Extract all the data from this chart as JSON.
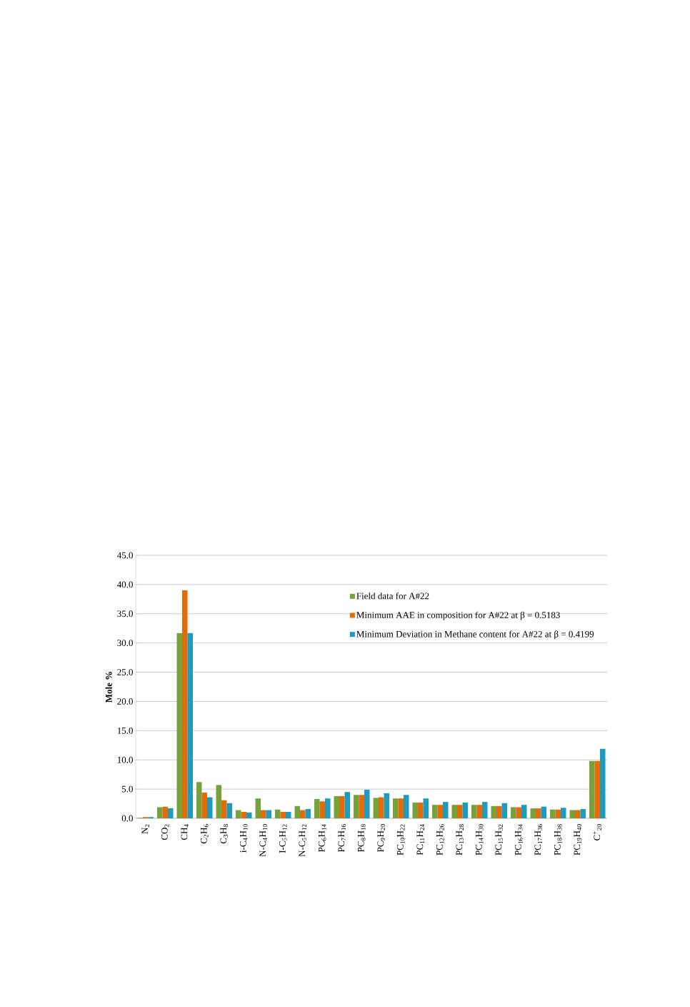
{
  "chart_data": {
    "type": "bar",
    "ylabel": "**Mole %**",
    "categories": [
      "N$_{2}$",
      "CO$_{2}$",
      "CH$_{4}$",
      "C$_{2}$H$_{6}$",
      "C$_{3}$H$_{8}$",
      "i-C$_{4}$H$_{10}$",
      "N-C$_{4}$H$_{10}$",
      "I-C$_{5}$H$_{12}$",
      "N-C$_{5}$H$_{12}$",
      "PC$_{6}$H$_{14}$",
      "PC$_{7}$H$_{16}$",
      "PC$_{8}$H$_{18}$",
      "PC$_{9}$H$_{20}$",
      "PC$_{10}$H$_{22}$",
      "PC$_{11}$H$_{24}$",
      "PC$_{12}$H$_{26}$",
      "PC$_{13}$H$_{28}$",
      "PC$_{14}$H$_{30}$",
      "PC$_{15}$H$_{32}$",
      "PC$_{16}$H$_{34}$",
      "PC$_{17}$H$_{36}$",
      "PC$_{18}$H$_{38}$",
      "PC$_{19}$H$_{40}$",
      "C$^{+}$$_{20}$"
    ],
    "series": [
      {
        "name": "Field data for A#22",
        "color": "#77a13a",
        "values": [
          0.1,
          1.9,
          31.7,
          6.2,
          5.7,
          1.4,
          3.4,
          1.5,
          2.1,
          3.3,
          3.8,
          4.0,
          3.5,
          3.4,
          2.7,
          2.3,
          2.3,
          2.3,
          2.1,
          1.9,
          1.7,
          1.5,
          1.4,
          9.8
        ]
      },
      {
        "name": "Minimum AAE in composition for A#22 at β = 0.5183",
        "color": "#e36c0a",
        "values": [
          0.2,
          2.0,
          39.0,
          4.4,
          3.1,
          1.1,
          1.4,
          1.1,
          1.4,
          2.9,
          3.8,
          4.0,
          3.6,
          3.4,
          2.7,
          2.3,
          2.3,
          2.3,
          2.1,
          1.9,
          1.7,
          1.5,
          1.4,
          9.8
        ]
      },
      {
        "name": "Minimum Deviation in Methane content for A#22 at β = 0.4199",
        "color": "#1f9bbd",
        "values": [
          0.2,
          1.7,
          31.7,
          3.6,
          2.6,
          1.0,
          1.4,
          1.1,
          1.6,
          3.4,
          4.5,
          4.9,
          4.3,
          4.0,
          3.4,
          2.8,
          2.7,
          2.8,
          2.6,
          2.3,
          2.0,
          1.8,
          1.6,
          11.9
        ]
      }
    ],
    "ylim": [
      0,
      45
    ],
    "yticks": [
      {
        "value": 0,
        "label": "0.0"
      },
      {
        "value": 5,
        "label": "5.0"
      },
      {
        "value": 10,
        "label": "10.0"
      },
      {
        "value": 15,
        "label": "15.0"
      },
      {
        "value": 20,
        "label": "20.0"
      },
      {
        "value": 25,
        "label": "25.0"
      },
      {
        "value": 30,
        "label": "30.0"
      },
      {
        "value": 35,
        "label": "35.0"
      },
      {
        "value": 40,
        "label": "40.0"
      },
      {
        "value": 45,
        "label": "45.0"
      }
    ],
    "grid": "y",
    "legend": "top right"
  }
}
